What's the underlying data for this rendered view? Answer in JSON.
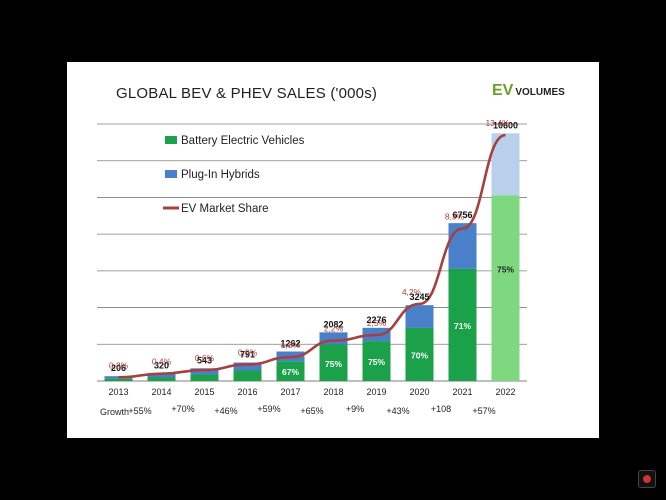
{
  "header": {
    "title": "GLOBAL BEV & PHEV SALES ('000s)",
    "logo_ev": "EV",
    "logo_volumes": "VOLUMES"
  },
  "growth": {
    "label": "Growth",
    "values": [
      "+55%",
      "+70%",
      "+46%",
      "+59%",
      "+65%",
      "+9%",
      "+43%",
      "+108",
      "+57%"
    ]
  },
  "colors": {
    "bev": "#1aa14a",
    "phev": "#4a7fca",
    "bev_forecast": "#7dd87f",
    "phev_forecast": "#b8d0ec",
    "share_line": "#a6403f",
    "grid": "#7f7f7f"
  },
  "chart_data": {
    "type": "bar",
    "stacked": true,
    "categories": [
      "2013",
      "2014",
      "2015",
      "2016",
      "2017",
      "2018",
      "2019",
      "2020",
      "2021",
      "2022"
    ],
    "totals": [
      206,
      320,
      543,
      791,
      1262,
      2082,
      2276,
      3245,
      6756,
      10600
    ],
    "bev_share_labels": [
      "",
      "",
      "",
      "",
      "67%",
      "75%",
      "75%",
      "70%",
      "71%",
      "75%"
    ],
    "series": [
      {
        "name": "Battery Electric Vehicles",
        "values": [
          100,
          150,
          280,
          450,
          846,
          1562,
          1707,
          2272,
          4797,
          7950
        ]
      },
      {
        "name": "Plug-In Hybrids",
        "values": [
          106,
          170,
          263,
          341,
          416,
          520,
          569,
          973,
          1959,
          2650
        ]
      }
    ],
    "line_series": {
      "name": "EV Market Share",
      "values": [
        0.2,
        0.4,
        0.6,
        0.9,
        1.3,
        2.2,
        2.5,
        4.2,
        8.3,
        13.4
      ],
      "labels": [
        "0,2%",
        "0,4%",
        "0,6%",
        "0,9%",
        "1,3%",
        "2,2%",
        "2,5%",
        "4,2%",
        "8,3%",
        "13,4%"
      ]
    },
    "forecast_categories": [
      "2022"
    ],
    "ylim": [
      0,
      11000
    ],
    "share_ylim": [
      0,
      14
    ],
    "gridlines": true,
    "legend_position": "top-left",
    "title": "GLOBAL BEV & PHEV SALES ('000s)"
  }
}
